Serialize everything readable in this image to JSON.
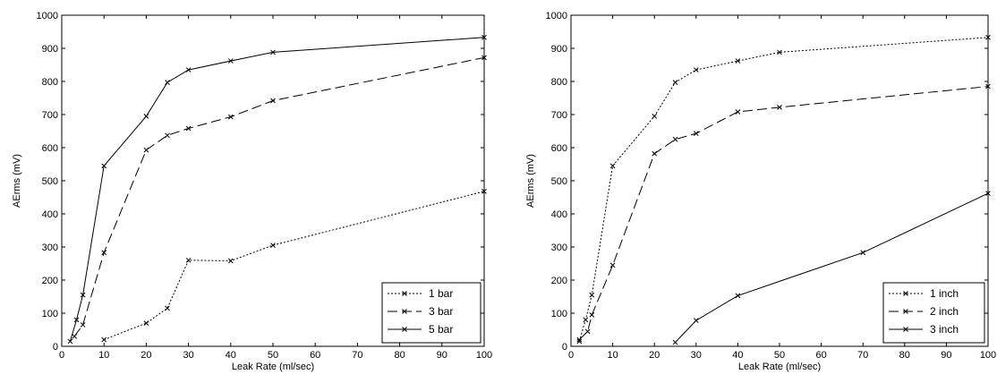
{
  "chart_data": [
    {
      "type": "line",
      "xlabel": "Leak Rate (ml/sec)",
      "ylabel": "AErms  (mV)",
      "xlim": [
        0,
        100
      ],
      "ylim": [
        0,
        1000
      ],
      "xticks": [
        0,
        10,
        20,
        30,
        40,
        50,
        60,
        70,
        80,
        90,
        100
      ],
      "yticks": [
        0,
        100,
        200,
        300,
        400,
        500,
        600,
        700,
        800,
        900,
        1000
      ],
      "grid": false,
      "legend_position": "bottom-right",
      "marker": "x",
      "series": [
        {
          "name": "1 bar",
          "line_style": "dotted",
          "x": [
            10,
            20,
            25,
            30,
            40,
            50,
            100
          ],
          "y": [
            20,
            70,
            115,
            260,
            258,
            305,
            468
          ]
        },
        {
          "name": "3 bar",
          "line_style": "dashed",
          "x": [
            3,
            5,
            10,
            20,
            25,
            30,
            40,
            50,
            100
          ],
          "y": [
            30,
            65,
            283,
            593,
            637,
            658,
            693,
            742,
            872
          ]
        },
        {
          "name": "5 bar",
          "line_style": "solid",
          "x": [
            2,
            3.5,
            5,
            10,
            20,
            25,
            30,
            40,
            50,
            100
          ],
          "y": [
            15,
            80,
            155,
            545,
            695,
            797,
            835,
            862,
            888,
            933
          ]
        }
      ]
    },
    {
      "type": "line",
      "xlabel": "Leak Rate (ml/sec)",
      "ylabel": "AErms (mV)",
      "xlim": [
        0,
        100
      ],
      "ylim": [
        0,
        1000
      ],
      "xticks": [
        0,
        10,
        20,
        30,
        40,
        50,
        60,
        70,
        80,
        90,
        100
      ],
      "yticks": [
        0,
        100,
        200,
        300,
        400,
        500,
        600,
        700,
        800,
        900,
        1000
      ],
      "grid": false,
      "legend_position": "bottom-right",
      "marker": "x",
      "series": [
        {
          "name": "1 inch",
          "line_style": "dotted",
          "x": [
            2,
            3.5,
            5,
            10,
            20,
            25,
            30,
            40,
            50,
            100
          ],
          "y": [
            15,
            80,
            155,
            545,
            695,
            797,
            835,
            862,
            888,
            933
          ]
        },
        {
          "name": "2 inch",
          "line_style": "dashed",
          "x": [
            2,
            4,
            5,
            10,
            20,
            25,
            30,
            40,
            50,
            100
          ],
          "y": [
            20,
            45,
            95,
            245,
            582,
            625,
            643,
            708,
            722,
            785
          ]
        },
        {
          "name": "3 inch",
          "line_style": "solid",
          "x": [
            25,
            30,
            40,
            70,
            100
          ],
          "y": [
            12,
            78,
            153,
            283,
            462
          ]
        }
      ]
    }
  ]
}
